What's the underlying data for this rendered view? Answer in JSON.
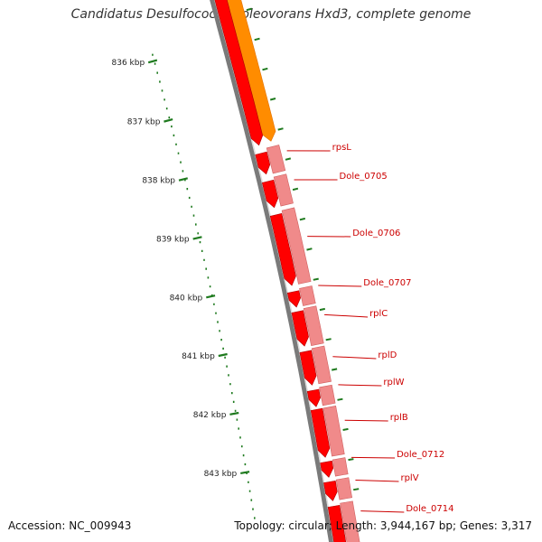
{
  "title": "Candidatus Desulfococcus oleovorans Hxd3, complete genome",
  "accession": "Accession: NC_009943",
  "stats": "Topology: circular; Length: 3,944,167 bp; Genes: 3,317",
  "colors": {
    "backbone": "#7a7a7a",
    "gene_forward": "#ff0000",
    "gene_faded": "#f08a8a",
    "gene_highlight": "#ff8c00",
    "ticks": "#1e7a1e",
    "label": "#cc0000"
  },
  "ticks": [
    {
      "kbp": 836,
      "label": "836 kbp"
    },
    {
      "kbp": 837,
      "label": "837 kbp"
    },
    {
      "kbp": 838,
      "label": "838 kbp"
    },
    {
      "kbp": 839,
      "label": "839 kbp"
    },
    {
      "kbp": 840,
      "label": "840 kbp"
    },
    {
      "kbp": 841,
      "label": "841 kbp"
    },
    {
      "kbp": 842,
      "label": "842 kbp"
    },
    {
      "kbp": 843,
      "label": "843 kbp"
    }
  ],
  "genes": [
    {
      "name": "rpsL"
    },
    {
      "name": "Dole_0705"
    },
    {
      "name": "Dole_0706"
    },
    {
      "name": "Dole_0707"
    },
    {
      "name": "rplC"
    },
    {
      "name": "rplD"
    },
    {
      "name": "rplW"
    },
    {
      "name": "rplB"
    },
    {
      "name": "Dole_0712"
    },
    {
      "name": "rplV"
    },
    {
      "name": "Dole_0714"
    }
  ]
}
